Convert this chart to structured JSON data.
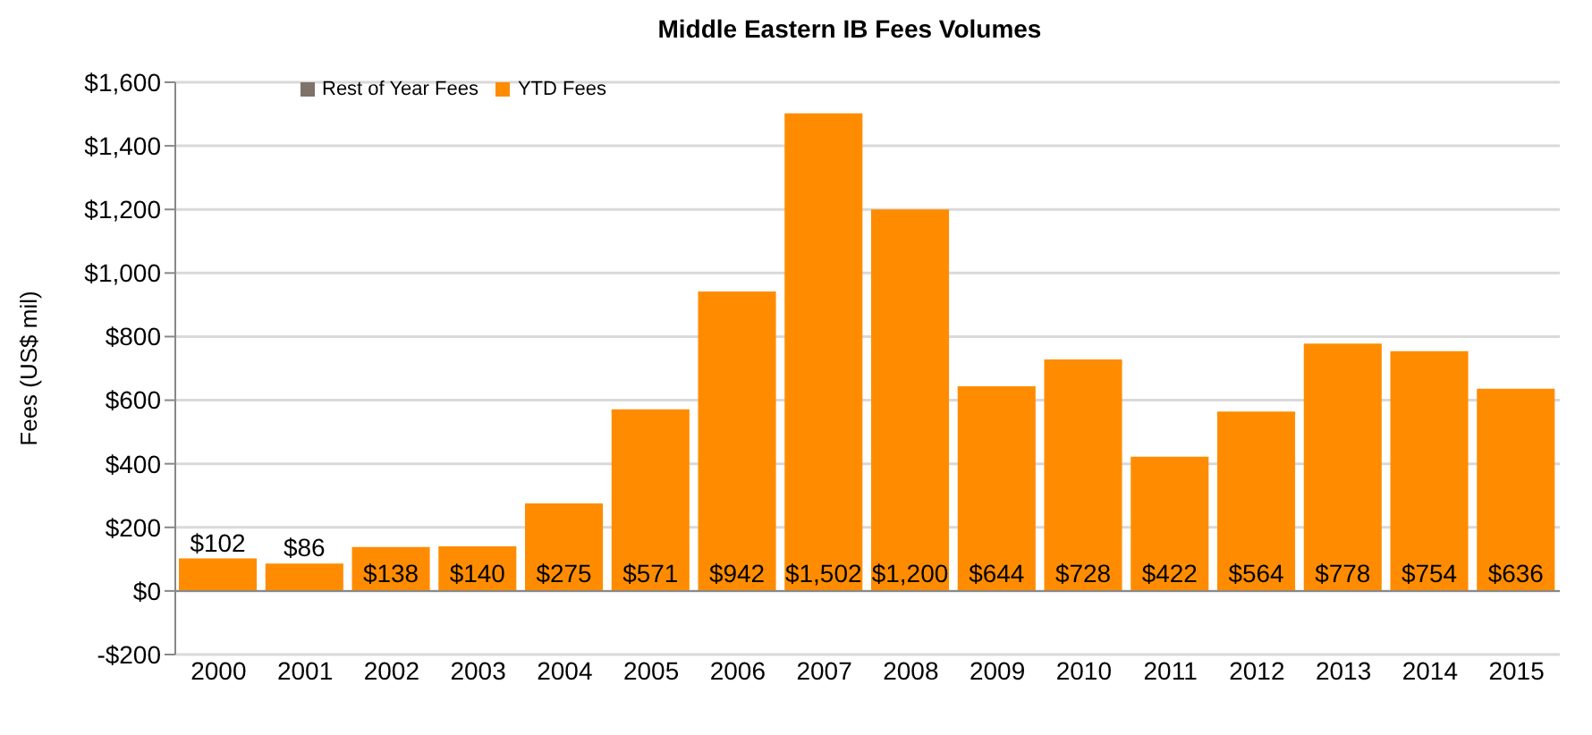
{
  "chart_data": {
    "type": "bar",
    "title": "Middle Eastern IB Fees Volumes",
    "ylabel": "Fees (US$ mil)",
    "categories": [
      "2000",
      "2001",
      "2002",
      "2003",
      "2004",
      "2005",
      "2006",
      "2007",
      "2008",
      "2009",
      "2010",
      "2011",
      "2012",
      "2013",
      "2014",
      "2015"
    ],
    "series": [
      {
        "name": "YTD Fees",
        "color": "#ff8c00",
        "values": [
          102,
          86,
          138,
          140,
          275,
          571,
          942,
          1502,
          1200,
          644,
          728,
          422,
          564,
          778,
          754,
          636
        ],
        "value_labels": [
          "$102",
          "$86",
          "$138",
          "$140",
          "$275",
          "$571",
          "$942",
          "$1,502",
          "$1,200",
          "$644",
          "$728",
          "$422",
          "$564",
          "$778",
          "$754",
          "$636"
        ]
      },
      {
        "name": "Rest of Year Fees",
        "color": "#7f7269",
        "values": [
          null,
          null,
          null,
          null,
          null,
          null,
          null,
          null,
          null,
          null,
          null,
          null,
          null,
          null,
          null,
          null
        ]
      }
    ],
    "stacked": true,
    "ylim": [
      -200,
      1600
    ],
    "yticks": [
      {
        "value": -200,
        "label": "-$200"
      },
      {
        "value": 0,
        "label": "$0"
      },
      {
        "value": 200,
        "label": "$200"
      },
      {
        "value": 400,
        "label": "$400"
      },
      {
        "value": 600,
        "label": "$600"
      },
      {
        "value": 800,
        "label": "$800"
      },
      {
        "value": 1000,
        "label": "$1,000"
      },
      {
        "value": 1200,
        "label": "$1,200"
      },
      {
        "value": 1400,
        "label": "$1,400"
      },
      {
        "value": 1600,
        "label": "$1,600"
      }
    ],
    "grid": "y",
    "legend": "top left"
  }
}
